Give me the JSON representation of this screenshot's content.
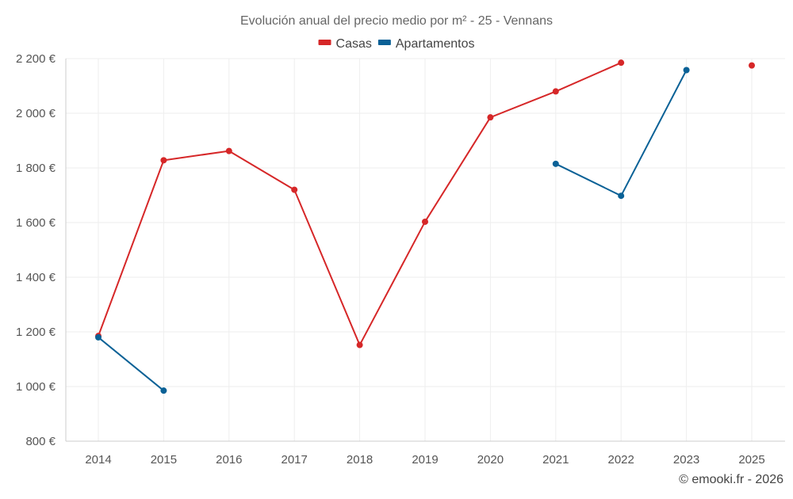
{
  "chart_data": {
    "type": "line",
    "title": "Evolución anual del precio medio por m² - 25 - Vennans",
    "categories": [
      "2014",
      "2015",
      "2016",
      "2017",
      "2018",
      "2019",
      "2020",
      "2021",
      "2022",
      "2023",
      "2025"
    ],
    "ylim": [
      800,
      2200
    ],
    "yticks": [
      800,
      1000,
      1200,
      1400,
      1600,
      1800,
      2000,
      2200
    ],
    "ytick_labels": [
      "800 €",
      "1 000 €",
      "1 200 €",
      "1 400 €",
      "1 600 €",
      "1 800 €",
      "2 000 €",
      "2 200 €"
    ],
    "xlabel": "",
    "ylabel": "",
    "grid": true,
    "legend_position": "top-center",
    "series": [
      {
        "name": "Casas",
        "color": "#d62728",
        "values": [
          1185,
          1828,
          1862,
          1720,
          1152,
          1603,
          1985,
          2080,
          2185,
          null,
          2175
        ]
      },
      {
        "name": "Apartamentos",
        "color": "#0a6196",
        "values": [
          1180,
          985,
          null,
          null,
          null,
          null,
          null,
          1815,
          1698,
          2158,
          null
        ]
      }
    ],
    "credit": "© emooki.fr - 2026"
  }
}
